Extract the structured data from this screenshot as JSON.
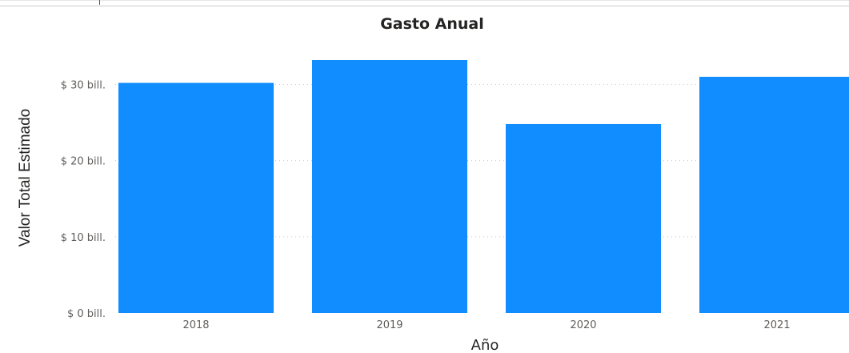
{
  "chart_data": {
    "type": "bar",
    "title": "Gasto Anual",
    "xlabel": "Año",
    "ylabel": "Valor Total Estimado",
    "categories": [
      "2018",
      "2019",
      "2020",
      "2021"
    ],
    "values": [
      30.2,
      33.2,
      24.8,
      31.0
    ],
    "ylim": [
      0,
      33.2
    ],
    "yticks": [
      0,
      10,
      20,
      30
    ],
    "ytick_labels": [
      "$ 0 bill.",
      "$ 10 bill.",
      "$ 20 bill.",
      "$ 30 bill."
    ],
    "grid": true,
    "legend": "none",
    "bar_color": "#118dff"
  }
}
